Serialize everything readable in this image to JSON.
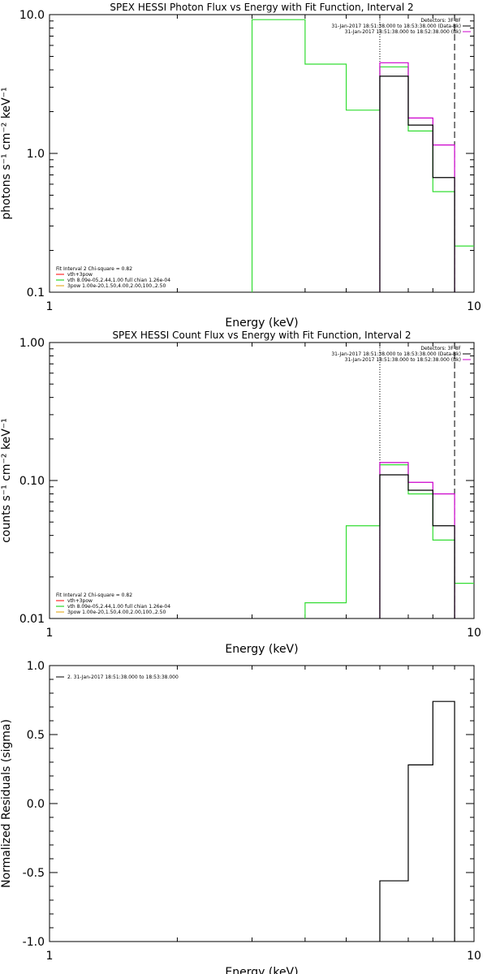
{
  "chart_data": [
    {
      "type": "line",
      "title": "SPEX HESSI Photon Flux vs Energy with Fit Function, Interval 2",
      "xlabel": "Energy (keV)",
      "ylabel": "photons s⁻¹ cm⁻² keV⁻¹",
      "xscale": "log",
      "yscale": "log",
      "xlim": [
        1,
        10
      ],
      "ylim": [
        0.1,
        10
      ],
      "xticks": [
        {
          "v": 1,
          "label": "1"
        },
        {
          "v": 10,
          "label": "10"
        }
      ],
      "yticks": [
        {
          "v": 0.1,
          "label": "0.1"
        },
        {
          "v": 1,
          "label": "1.0"
        },
        {
          "v": 10,
          "label": "10.0"
        }
      ],
      "legend_top_right": [
        "Detectors: 3F 8F",
        "31-Jan-2017 18:51:38.000 to 18:53:38.000 (Data-Bk)",
        "31-Jan-2017 18:51:38.000 to 18:52:38.000 (Bk)"
      ],
      "legend_bottom_left": [
        "Fit Interval 2   Chi-square = 0.82",
        "vth+3pow",
        "vth 8.09e-05,2.44,1.00  full chian 1.26e-04",
        "3pow 1.00e-20,1.50,4.00,2.00,100.,2.50"
      ],
      "legend_bottom_left_colors": [
        "",
        "#ff0000",
        "#00cc00",
        "#e0a000"
      ],
      "vlines": [
        {
          "x": 6.0,
          "style": "dotted",
          "color": "#000000"
        },
        {
          "x": 9.0,
          "style": "dashed",
          "color": "#000000"
        }
      ],
      "series": [
        {
          "color": "#33dd33",
          "edges": [
            3.0,
            4.0,
            5.0,
            6.0,
            7.0,
            8.0,
            9.0,
            10.0
          ],
          "values": [
            9.2,
            4.4,
            2.05,
            4.2,
            1.45,
            0.53,
            0.215
          ]
        },
        {
          "color": "#cc00cc",
          "edges": [
            6.0,
            7.0,
            8.0,
            9.0
          ],
          "values": [
            4.5,
            1.8,
            1.15
          ]
        },
        {
          "color": "#000000",
          "edges": [
            6.0,
            7.0,
            8.0,
            9.0
          ],
          "values": [
            3.6,
            1.6,
            0.67
          ]
        }
      ]
    },
    {
      "type": "line",
      "title": "SPEX HESSI Count Flux vs Energy with Fit Function, Interval 2",
      "xlabel": "Energy (keV)",
      "ylabel": "counts s⁻¹ cm⁻² keV⁻¹",
      "xscale": "log",
      "yscale": "log",
      "xlim": [
        1,
        10
      ],
      "ylim": [
        0.01,
        1
      ],
      "xticks": [
        {
          "v": 1,
          "label": "1"
        },
        {
          "v": 10,
          "label": "10"
        }
      ],
      "yticks": [
        {
          "v": 0.01,
          "label": "0.01"
        },
        {
          "v": 0.1,
          "label": "0.10"
        },
        {
          "v": 1,
          "label": "1.00"
        }
      ],
      "legend_top_right": [
        "Detectors: 3F 8F",
        "31-Jan-2017 18:51:38.000 to 18:53:38.000 (Data-Bk)",
        "31-Jan-2017 18:51:38.000 to 18:52:38.000 (Bk)"
      ],
      "legend_bottom_left": [
        "Fit Interval 2   Chi-square = 0.82",
        "vth+3pow",
        "vth 8.09e-05,2.44,1.00  full chian 1.26e-04",
        "3pow 1.00e-20,1.50,4.00,2.00,100.,2.50"
      ],
      "legend_bottom_left_colors": [
        "",
        "#ff0000",
        "#00cc00",
        "#e0a000"
      ],
      "vlines": [
        {
          "x": 6.0,
          "style": "dotted",
          "color": "#000000"
        },
        {
          "x": 9.0,
          "style": "dashed",
          "color": "#000000"
        }
      ],
      "series": [
        {
          "color": "#33dd33",
          "edges": [
            4.0,
            5.0,
            6.0,
            7.0,
            8.0,
            9.0,
            10.0
          ],
          "values": [
            0.013,
            0.047,
            0.13,
            0.08,
            0.037,
            0.018
          ]
        },
        {
          "color": "#cc00cc",
          "edges": [
            6.0,
            7.0,
            8.0,
            9.0
          ],
          "values": [
            0.135,
            0.097,
            0.08
          ]
        },
        {
          "color": "#000000",
          "edges": [
            6.0,
            7.0,
            8.0,
            9.0
          ],
          "values": [
            0.11,
            0.085,
            0.047
          ]
        }
      ]
    },
    {
      "type": "line",
      "title": "",
      "xlabel": "Energy (keV)",
      "ylabel": "Normalized Residuals (sigma)",
      "xscale": "log",
      "yscale": "linear",
      "xlim": [
        1,
        10
      ],
      "ylim": [
        -1.0,
        1.0
      ],
      "xticks": [
        {
          "v": 1,
          "label": "1"
        },
        {
          "v": 10,
          "label": "10"
        }
      ],
      "yticks": [
        {
          "v": -1.0,
          "label": "-1.0"
        },
        {
          "v": -0.5,
          "label": "-0.5"
        },
        {
          "v": 0.0,
          "label": "0.0"
        },
        {
          "v": 0.5,
          "label": "0.5"
        },
        {
          "v": 1.0,
          "label": "1.0"
        }
      ],
      "legend_top_left": [
        "2. 31-Jan-2017 18:51:38.000 to 18:53:38.000"
      ],
      "vlines": [],
      "series": [
        {
          "color": "#000000",
          "edges": [
            6.0,
            7.0,
            8.0,
            9.0
          ],
          "values": [
            -0.56,
            0.28,
            0.74
          ]
        }
      ]
    }
  ]
}
